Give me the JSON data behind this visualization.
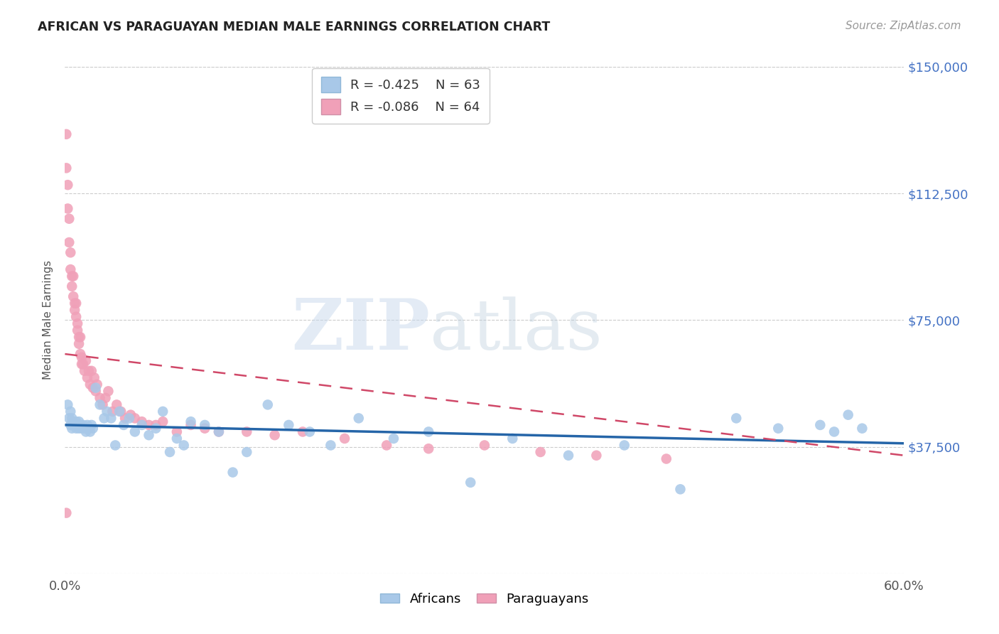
{
  "title": "AFRICAN VS PARAGUAYAN MEDIAN MALE EARNINGS CORRELATION CHART",
  "source": "Source: ZipAtlas.com",
  "ylabel": "Median Male Earnings",
  "xlim": [
    0.0,
    0.6
  ],
  "ylim": [
    0,
    150000
  ],
  "yticks": [
    0,
    37500,
    75000,
    112500,
    150000
  ],
  "ytick_labels": [
    "",
    "$37,500",
    "$75,000",
    "$112,500",
    "$150,000"
  ],
  "xticks": [
    0.0,
    0.1,
    0.2,
    0.3,
    0.4,
    0.5,
    0.6
  ],
  "xtick_labels": [
    "0.0%",
    "",
    "",
    "",
    "",
    "",
    "60.0%"
  ],
  "african_R": -0.425,
  "african_N": 63,
  "paraguayan_R": -0.086,
  "paraguayan_N": 64,
  "african_color": "#a8c8e8",
  "paraguayan_color": "#f0a0b8",
  "african_line_color": "#2565a8",
  "paraguayan_line_color": "#d04868",
  "background_color": "#ffffff",
  "grid_color": "#cccccc",
  "africans_x": [
    0.002,
    0.003,
    0.004,
    0.004,
    0.005,
    0.005,
    0.006,
    0.007,
    0.008,
    0.008,
    0.009,
    0.01,
    0.01,
    0.011,
    0.012,
    0.013,
    0.014,
    0.015,
    0.016,
    0.017,
    0.018,
    0.019,
    0.02,
    0.022,
    0.025,
    0.028,
    0.03,
    0.033,
    0.036,
    0.039,
    0.042,
    0.046,
    0.05,
    0.055,
    0.06,
    0.065,
    0.07,
    0.075,
    0.08,
    0.085,
    0.09,
    0.1,
    0.11,
    0.12,
    0.13,
    0.145,
    0.16,
    0.175,
    0.19,
    0.21,
    0.235,
    0.26,
    0.29,
    0.32,
    0.36,
    0.4,
    0.44,
    0.48,
    0.51,
    0.54,
    0.55,
    0.56,
    0.57
  ],
  "africans_y": [
    50000,
    46000,
    48000,
    44000,
    46000,
    43000,
    45000,
    44000,
    43000,
    45000,
    44000,
    43000,
    45000,
    44000,
    43000,
    44000,
    43000,
    42000,
    44000,
    43000,
    42000,
    44000,
    43000,
    55000,
    50000,
    46000,
    48000,
    46000,
    38000,
    48000,
    44000,
    46000,
    42000,
    44000,
    41000,
    43000,
    48000,
    36000,
    40000,
    38000,
    45000,
    44000,
    42000,
    30000,
    36000,
    50000,
    44000,
    42000,
    38000,
    46000,
    40000,
    42000,
    27000,
    40000,
    35000,
    38000,
    25000,
    46000,
    43000,
    44000,
    42000,
    47000,
    43000
  ],
  "paraguayans_x": [
    0.001,
    0.001,
    0.002,
    0.002,
    0.003,
    0.003,
    0.004,
    0.004,
    0.005,
    0.005,
    0.006,
    0.006,
    0.007,
    0.007,
    0.008,
    0.008,
    0.009,
    0.009,
    0.01,
    0.01,
    0.011,
    0.011,
    0.012,
    0.012,
    0.013,
    0.014,
    0.015,
    0.016,
    0.017,
    0.018,
    0.019,
    0.02,
    0.021,
    0.022,
    0.023,
    0.025,
    0.027,
    0.029,
    0.031,
    0.034,
    0.037,
    0.04,
    0.043,
    0.047,
    0.05,
    0.055,
    0.06,
    0.065,
    0.07,
    0.08,
    0.09,
    0.1,
    0.11,
    0.13,
    0.15,
    0.17,
    0.2,
    0.23,
    0.26,
    0.3,
    0.34,
    0.38,
    0.43,
    0.001
  ],
  "paraguayans_y": [
    130000,
    120000,
    115000,
    108000,
    105000,
    98000,
    95000,
    90000,
    88000,
    85000,
    82000,
    88000,
    80000,
    78000,
    76000,
    80000,
    74000,
    72000,
    70000,
    68000,
    70000,
    65000,
    64000,
    62000,
    62000,
    60000,
    63000,
    58000,
    60000,
    56000,
    60000,
    55000,
    58000,
    54000,
    56000,
    52000,
    50000,
    52000,
    54000,
    48000,
    50000,
    48000,
    46000,
    47000,
    46000,
    45000,
    44000,
    44000,
    45000,
    42000,
    44000,
    43000,
    42000,
    42000,
    41000,
    42000,
    40000,
    38000,
    37000,
    38000,
    36000,
    35000,
    34000,
    18000
  ]
}
